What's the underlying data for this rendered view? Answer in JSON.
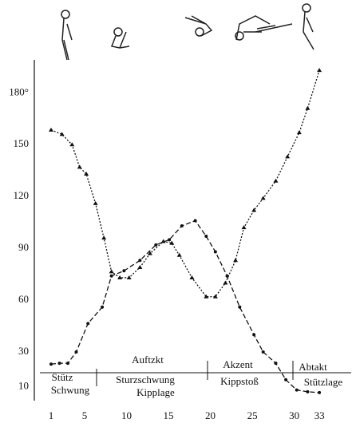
{
  "chart_data": {
    "type": "line",
    "xlim": [
      -1,
      36.8
    ],
    "ylim": [
      0,
      200
    ],
    "xticks": [
      1,
      5,
      10,
      15,
      20,
      25,
      30,
      33
    ],
    "yticks": [
      10,
      30,
      60,
      90,
      120,
      150,
      {
        "value": 180,
        "label": "180°"
      }
    ],
    "series": [
      {
        "marker": "triangle",
        "color": "#111111",
        "x": [
          1,
          2.3,
          3.5,
          4.4,
          5.2,
          6.3,
          7.3,
          8.2,
          9.2,
          10.3,
          11.6,
          12.8,
          14.4,
          15.4,
          16.3,
          17.8,
          19.5,
          20.6,
          21.8,
          23,
          24,
          25.2,
          26.3,
          27.8,
          29.2,
          30.6,
          31.6,
          33
        ],
        "values": [
          158.5,
          156,
          150,
          137,
          133,
          116,
          96,
          76.5,
          73,
          73,
          79,
          87,
          94,
          93,
          86,
          73,
          62,
          62,
          70,
          83,
          102,
          112,
          119,
          129,
          143,
          157,
          171,
          193
        ]
      },
      {
        "marker": "circle",
        "color": "#111111",
        "x": [
          1,
          2,
          3,
          4,
          5.4,
          7.1,
          8.2,
          9.7,
          11.6,
          13.5,
          15.1,
          16.6,
          18.2,
          19.5,
          20.6,
          22,
          23.5,
          25.2,
          26.3,
          27.8,
          29,
          30.3,
          31.6,
          33
        ],
        "values": [
          23,
          23.5,
          23.5,
          30,
          46.5,
          56,
          74,
          77,
          83,
          92,
          95,
          103,
          106,
          97,
          88,
          74,
          56,
          40,
          30,
          23.5,
          14,
          8,
          7,
          6.5
        ]
      }
    ],
    "annotations": [
      "Auftzkt",
      "Akzent",
      "Abtakt",
      "Stütz",
      "Schwung",
      "Sturzschwung",
      "Kipplage",
      "Kippstoß",
      "Stützlage"
    ]
  }
}
